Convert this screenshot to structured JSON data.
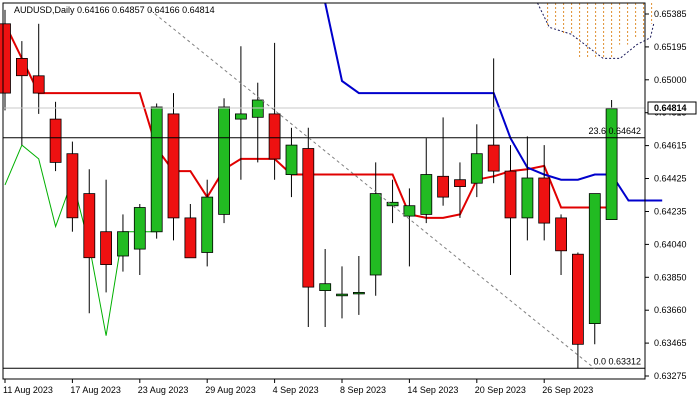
{
  "chart_data": {
    "type": "candlestick",
    "symbol": "AUDUSD",
    "timeframe": "Daily",
    "header_text": "AUDUSD,Daily  0.64166 0.64857 0.64166 0.64814",
    "ohlc": {
      "open": "0.64166",
      "high": "0.64857",
      "low": "0.64166",
      "close": "0.64814"
    },
    "ylim": [
      0.6325,
      0.6542
    ],
    "y_ticks": [
      "0.65385",
      "0.65195",
      "0.65000",
      "0.64815",
      "0.64615",
      "0.64425",
      "0.64235",
      "0.64040",
      "0.63850",
      "0.63660",
      "0.63465",
      "0.63275"
    ],
    "x_labels": [
      {
        "label": "11 Aug 2023",
        "index": 0
      },
      {
        "label": "17 Aug 2023",
        "index": 4
      },
      {
        "label": "23 Aug 2023",
        "index": 8
      },
      {
        "label": "29 Aug 2023",
        "index": 12
      },
      {
        "label": "4 Sep 2023",
        "index": 16
      },
      {
        "label": "8 Sep 2023",
        "index": 20
      },
      {
        "label": "14 Sep 2023",
        "index": 24
      },
      {
        "label": "20 Sep 2023",
        "index": 28
      },
      {
        "label": "26 Sep 2023",
        "index": 32
      }
    ],
    "candles": [
      {
        "o": 0.653,
        "h": 0.6538,
        "l": 0.648,
        "c": 0.649
      },
      {
        "o": 0.651,
        "h": 0.652,
        "l": 0.646,
        "c": 0.65
      },
      {
        "o": 0.65,
        "h": 0.653,
        "l": 0.6478,
        "c": 0.649
      },
      {
        "o": 0.6475,
        "h": 0.6485,
        "l": 0.6445,
        "c": 0.645
      },
      {
        "o": 0.6455,
        "h": 0.6462,
        "l": 0.641,
        "c": 0.6418
      },
      {
        "o": 0.6432,
        "h": 0.6446,
        "l": 0.6363,
        "c": 0.6395
      },
      {
        "o": 0.641,
        "h": 0.644,
        "l": 0.6375,
        "c": 0.6391
      },
      {
        "o": 0.6396,
        "h": 0.642,
        "l": 0.6387,
        "c": 0.641
      },
      {
        "o": 0.64,
        "h": 0.6426,
        "l": 0.6385,
        "c": 0.6424
      },
      {
        "o": 0.641,
        "h": 0.6484,
        "l": 0.6406,
        "c": 0.6482
      },
      {
        "o": 0.6478,
        "h": 0.649,
        "l": 0.6405,
        "c": 0.6418
      },
      {
        "o": 0.6418,
        "h": 0.6426,
        "l": 0.6395,
        "c": 0.6395
      },
      {
        "o": 0.6398,
        "h": 0.644,
        "l": 0.639,
        "c": 0.643
      },
      {
        "o": 0.642,
        "h": 0.6487,
        "l": 0.6415,
        "c": 0.6482
      },
      {
        "o": 0.6475,
        "h": 0.6517,
        "l": 0.644,
        "c": 0.6478
      },
      {
        "o": 0.6476,
        "h": 0.6496,
        "l": 0.645,
        "c": 0.6486
      },
      {
        "o": 0.6478,
        "h": 0.6519,
        "l": 0.644,
        "c": 0.6452
      },
      {
        "o": 0.6443,
        "h": 0.647,
        "l": 0.643,
        "c": 0.646
      },
      {
        "o": 0.6458,
        "h": 0.647,
        "l": 0.6355,
        "c": 0.6378
      },
      {
        "o": 0.6376,
        "h": 0.64,
        "l": 0.6355,
        "c": 0.638
      },
      {
        "o": 0.6373,
        "h": 0.639,
        "l": 0.636,
        "c": 0.6374
      },
      {
        "o": 0.6375,
        "h": 0.6396,
        "l": 0.6362,
        "c": 0.6375
      },
      {
        "o": 0.6385,
        "h": 0.645,
        "l": 0.6373,
        "c": 0.6432
      },
      {
        "o": 0.6425,
        "h": 0.644,
        "l": 0.6415,
        "c": 0.6427
      },
      {
        "o": 0.6419,
        "h": 0.6435,
        "l": 0.639,
        "c": 0.6425
      },
      {
        "o": 0.642,
        "h": 0.6464,
        "l": 0.6415,
        "c": 0.6443
      },
      {
        "o": 0.6442,
        "h": 0.6476,
        "l": 0.6425,
        "c": 0.643
      },
      {
        "o": 0.644,
        "h": 0.645,
        "l": 0.6418,
        "c": 0.6436
      },
      {
        "o": 0.6438,
        "h": 0.6472,
        "l": 0.643,
        "c": 0.6455
      },
      {
        "o": 0.646,
        "h": 0.651,
        "l": 0.6438,
        "c": 0.6445
      },
      {
        "o": 0.6445,
        "h": 0.646,
        "l": 0.6385,
        "c": 0.6418
      },
      {
        "o": 0.6418,
        "h": 0.6465,
        "l": 0.6405,
        "c": 0.6441
      },
      {
        "o": 0.6441,
        "h": 0.646,
        "l": 0.6405,
        "c": 0.6415
      },
      {
        "o": 0.6418,
        "h": 0.642,
        "l": 0.6385,
        "c": 0.6399
      },
      {
        "o": 0.6397,
        "h": 0.6398,
        "l": 0.6331,
        "c": 0.6345
      },
      {
        "o": 0.6357,
        "h": 0.6432,
        "l": 0.6345,
        "c": 0.6432
      },
      {
        "o": 0.6417,
        "h": 0.6486,
        "l": 0.6417,
        "c": 0.6481
      }
    ],
    "series": [
      {
        "color": "#e00000",
        "points": [
          [
            0,
            0.653
          ],
          [
            2,
            0.649
          ],
          [
            4,
            0.649
          ],
          [
            6,
            0.649
          ],
          [
            8,
            0.649
          ],
          [
            9,
            0.6458
          ],
          [
            10,
            0.6445
          ],
          [
            11,
            0.6445
          ],
          [
            12,
            0.643
          ],
          [
            13,
            0.6446
          ],
          [
            14,
            0.6452
          ],
          [
            16,
            0.6452
          ],
          [
            17,
            0.6443
          ],
          [
            20,
            0.6443
          ],
          [
            23,
            0.6443
          ],
          [
            24,
            0.642
          ],
          [
            25,
            0.6418
          ],
          [
            26,
            0.6418
          ],
          [
            27,
            0.642
          ],
          [
            28,
            0.644
          ],
          [
            29,
            0.6442
          ],
          [
            30,
            0.6445
          ],
          [
            31,
            0.6446
          ],
          [
            32,
            0.6448
          ],
          [
            33,
            0.6424
          ],
          [
            34,
            0.6424
          ],
          [
            35,
            0.6424
          ],
          [
            36,
            0.6424
          ]
        ]
      },
      {
        "color": "#0000cc",
        "points": [
          [
            19,
            0.6542
          ],
          [
            20,
            0.6497
          ],
          [
            21,
            0.649
          ],
          [
            22,
            0.649
          ],
          [
            23,
            0.649
          ],
          [
            24,
            0.649
          ],
          [
            25,
            0.649
          ],
          [
            26,
            0.649
          ],
          [
            27,
            0.649
          ],
          [
            28,
            0.649
          ],
          [
            29,
            0.649
          ],
          [
            30,
            0.6464
          ],
          [
            31,
            0.6447
          ],
          [
            32,
            0.6443
          ],
          [
            33,
            0.644
          ],
          [
            34,
            0.644
          ],
          [
            35,
            0.6443
          ],
          [
            36,
            0.6443
          ],
          [
            37,
            0.6428
          ],
          [
            38,
            0.6428
          ],
          [
            39,
            0.6428
          ]
        ]
      },
      {
        "color": "#00b000",
        "points": [
          [
            0,
            0.6437
          ],
          [
            1,
            0.646
          ],
          [
            2,
            0.6452
          ],
          [
            3,
            0.6413
          ],
          [
            4,
            0.644
          ],
          [
            5,
            0.6402
          ],
          [
            6,
            0.635
          ],
          [
            7,
            0.641
          ],
          [
            8,
            0.641
          ],
          [
            9,
            0.641
          ]
        ]
      }
    ],
    "price_level_line": {
      "value": 0.64814,
      "label": "0.64814",
      "color": "#c8c8c8"
    },
    "fib_levels": [
      {
        "label": "23.6 0.64642",
        "value": 0.64642
      },
      {
        "label": "0.0 0.63312",
        "value": 0.63312
      }
    ],
    "trendline_dashed": {
      "from": [
        6,
        0.6538
      ],
      "to": [
        35,
        0.6331
      ]
    },
    "colors": {
      "bull": "#22bb22",
      "bear": "#ee1111",
      "outline": "#000000",
      "cloud": "#e09030",
      "grid": "#000000"
    }
  }
}
